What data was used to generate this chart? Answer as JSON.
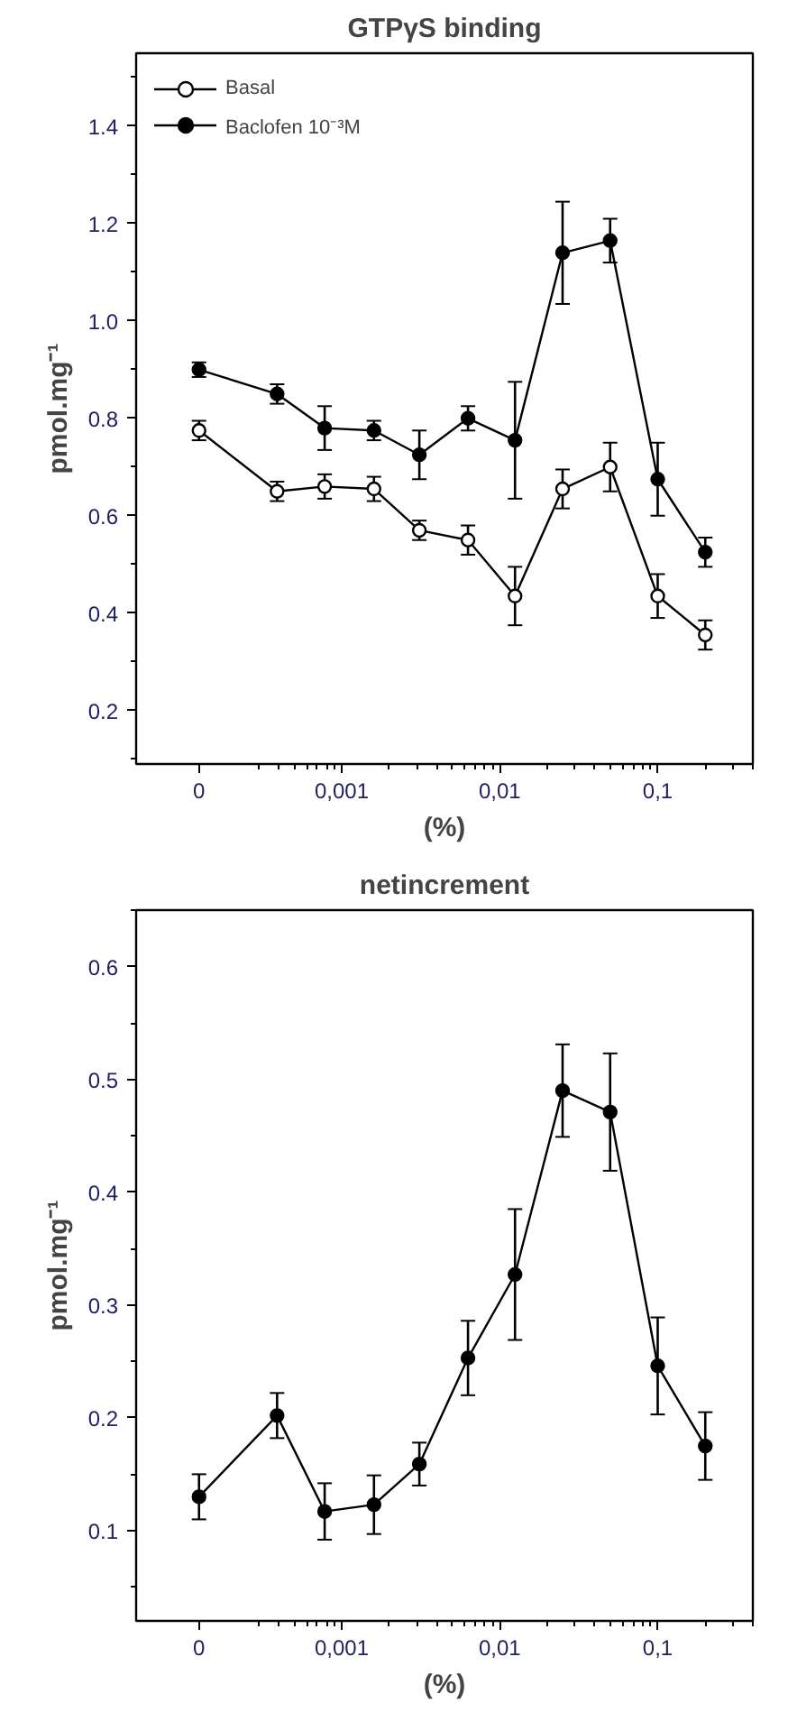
{
  "chart_data": [
    {
      "type": "line",
      "title": "GTPγS binding",
      "xlabel": "(%)",
      "ylabel": "pmol.mg⁻¹",
      "x": [
        0.000125,
        0.00039,
        0.00078,
        0.0016,
        0.0031,
        0.0063,
        0.0125,
        0.025,
        0.05,
        0.1,
        0.2
      ],
      "log": "x",
      "xlim": [
        5e-05,
        0.4
      ],
      "xticks": [
        {
          "value": 0.000125,
          "label": "0"
        },
        {
          "value": 0.001,
          "label": "0,001"
        },
        {
          "value": 0.01,
          "label": "0,01"
        },
        {
          "value": 0.1,
          "label": "0,1"
        }
      ],
      "ylim": [
        0.09,
        1.55
      ],
      "yticks": [
        0.2,
        0.4,
        0.6,
        0.8,
        {
          "value": 1.0,
          "label": "1.0"
        },
        1.2,
        1.4
      ],
      "series": [
        {
          "name": "Basal",
          "color": "#000000",
          "marker": "circle_open",
          "values": [
            0.775,
            0.65,
            0.66,
            0.655,
            0.57,
            0.55,
            0.435,
            0.655,
            0.7,
            0.435,
            0.355
          ],
          "errors": [
            0.02,
            0.02,
            0.025,
            0.025,
            0.02,
            0.03,
            0.06,
            0.04,
            0.05,
            0.045,
            0.03
          ]
        },
        {
          "name": "Baclofen 10⁻³M",
          "color": "#000000",
          "marker": "circle",
          "values": [
            0.9,
            0.85,
            0.78,
            0.775,
            0.725,
            0.8,
            0.755,
            1.14,
            1.165,
            0.675,
            0.525
          ],
          "errors": [
            0.015,
            0.02,
            0.045,
            0.02,
            0.05,
            0.025,
            0.12,
            0.105,
            0.045,
            0.075,
            0.03
          ]
        }
      ],
      "legend": "top left",
      "grid": false
    },
    {
      "type": "line",
      "title": "netincrement",
      "xlabel": "(%)",
      "ylabel": "pmol.mg⁻¹",
      "x": [
        0.000125,
        0.00039,
        0.00078,
        0.0016,
        0.0031,
        0.0063,
        0.0125,
        0.025,
        0.05,
        0.1,
        0.2
      ],
      "log": "x",
      "xlim": [
        5e-05,
        0.4
      ],
      "xticks": [
        {
          "value": 0.000125,
          "label": "0"
        },
        {
          "value": 0.001,
          "label": "0,001"
        },
        {
          "value": 0.01,
          "label": "0,01"
        },
        {
          "value": 0.1,
          "label": "0,1"
        }
      ],
      "ylim": [
        0.02,
        0.65
      ],
      "yticks": [
        0.1,
        0.2,
        0.3,
        0.4,
        0.5,
        0.6
      ],
      "series": [
        {
          "color": "#000000",
          "marker": "circle",
          "values": [
            0.13,
            0.202,
            0.117,
            0.123,
            0.159,
            0.253,
            0.327,
            0.49,
            0.471,
            0.246,
            0.175
          ],
          "errors": [
            0.02,
            0.02,
            0.025,
            0.026,
            0.019,
            0.033,
            0.058,
            0.041,
            0.052,
            0.043,
            0.03
          ]
        }
      ],
      "legend": false,
      "grid": false
    }
  ]
}
